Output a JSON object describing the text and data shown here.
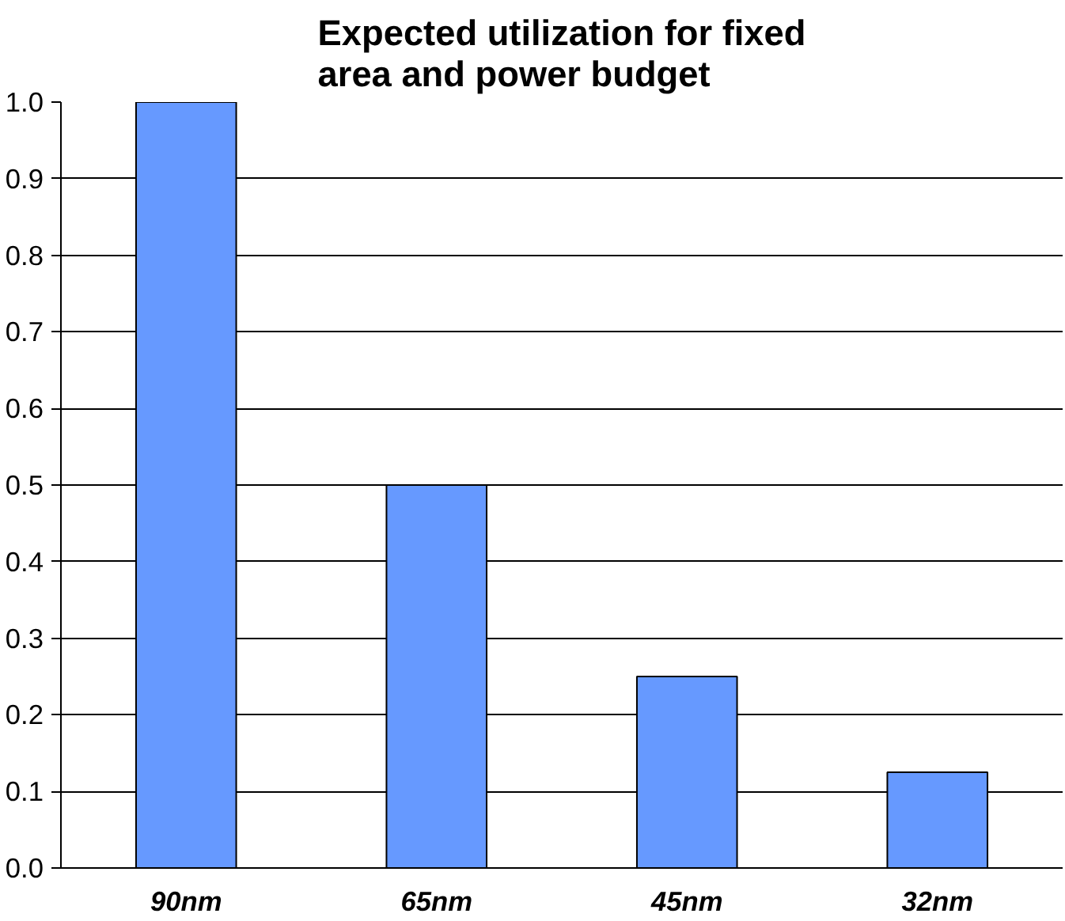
{
  "chart_data": {
    "type": "bar",
    "title": "Expected utilization for fixed area and power budget",
    "categories": [
      "90nm",
      "65nm",
      "45nm",
      "32nm"
    ],
    "values": [
      1.0,
      0.5,
      0.25,
      0.125
    ],
    "color": "#6699ff",
    "ylim": [
      0,
      1.0
    ],
    "yticks": [
      {
        "value": 0,
        "label": "0.0"
      },
      0.1,
      0.2,
      0.3,
      0.4,
      0.5,
      0.6,
      0.7,
      0.8,
      0.9,
      {
        "value": 1.0,
        "label": "1.0"
      }
    ],
    "grid": "y"
  }
}
